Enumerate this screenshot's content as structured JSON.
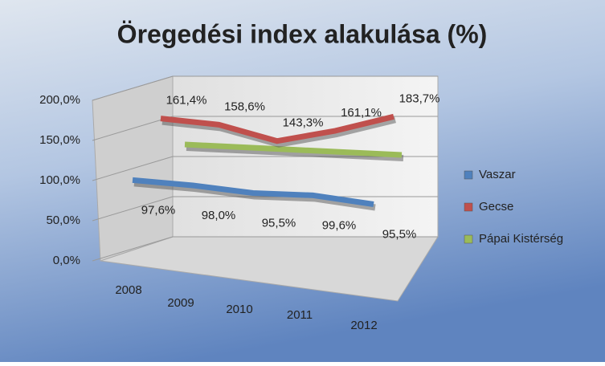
{
  "chart_data": {
    "type": "line3d",
    "title": "Öregedési index  alakulása (%)",
    "categories": [
      "2008",
      "2009",
      "2010",
      "2011",
      "2012"
    ],
    "ylim": [
      0,
      200
    ],
    "yticks": [
      {
        "value": 0,
        "label": "0,0%"
      },
      {
        "value": 50,
        "label": "50,0%"
      },
      {
        "value": 100,
        "label": "100,0%"
      },
      {
        "value": 150,
        "label": "150,0%"
      },
      {
        "value": 200,
        "label": "200,0%"
      }
    ],
    "grid": true,
    "legend": "right",
    "series": [
      {
        "name": "Vaszar",
        "color": "#4f81bd",
        "values": [
          97.6,
          98.0,
          95.5,
          99.6,
          95.5
        ],
        "value_labels": [
          "97,6%",
          "98,0%",
          "95,5%",
          "99,6%",
          "95,5%"
        ]
      },
      {
        "name": "Gecse",
        "color": "#c0504d",
        "values": [
          161.4,
          158.6,
          143.3,
          161.1,
          183.7
        ],
        "value_labels": [
          "161,4%",
          "158,6%",
          "143,3%",
          "161,1%",
          "183,7%"
        ]
      },
      {
        "name": "Pápai Kistérség",
        "color": "#9bbb59",
        "values": [
          121,
          120,
          119,
          118,
          117
        ]
      }
    ]
  }
}
